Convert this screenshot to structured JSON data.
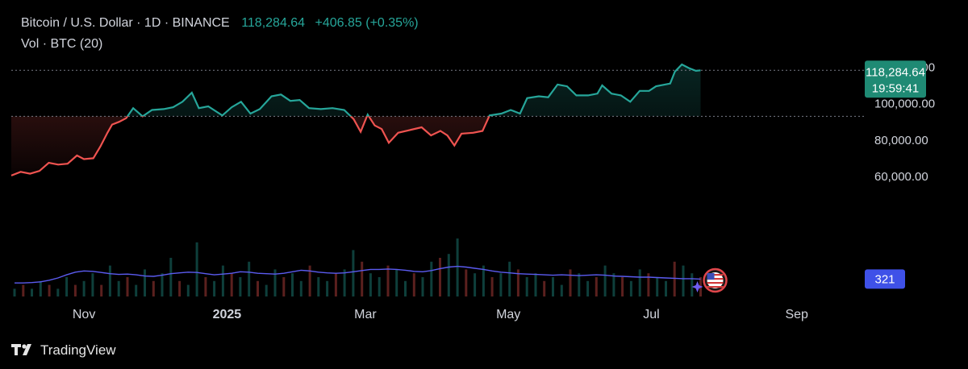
{
  "legend": {
    "title": "Bitcoin / U.S. Dollar · 1D · BINANCE",
    "price": "118,284.64",
    "change": "+406.85 (+0.35%)",
    "volume_label": "Vol · BTC (20)"
  },
  "brand": {
    "name": "TradingView",
    "logo_icon": "tradingview-logo-icon"
  },
  "colors": {
    "up": "#26a69a",
    "down": "#ef5350",
    "volume_ma": "#5b5bf0",
    "badge_volume": "#3f51e8",
    "badge_price": "#1f8a74"
  },
  "chart_data": {
    "type": "line",
    "title": "Bitcoin / U.S. Dollar · 1D · BINANCE",
    "x_ticks": [
      {
        "label": "Nov",
        "date": "2024-11-01"
      },
      {
        "label": "2025",
        "date": "2025-01-01"
      },
      {
        "label": "Mar",
        "date": "2025-03-01"
      },
      {
        "label": "May",
        "date": "2025-05-01"
      },
      {
        "label": "Jul",
        "date": "2025-07-01"
      },
      {
        "label": "Sep",
        "date": "2025-09-01"
      }
    ],
    "y_ticks": [
      {
        "label": "60,000.00",
        "value": 60000
      },
      {
        "label": "80,000.00",
        "value": 80000
      },
      {
        "label": "100,000.00",
        "value": 100000
      },
      {
        "label": "120,000.00",
        "value": 120000
      }
    ],
    "ylim": [
      52000,
      123000
    ],
    "xlim": [
      "2024-10-01",
      "2025-09-30"
    ],
    "baseline": 93000,
    "last_price": 118284.64,
    "last_price_label": "118,284.64",
    "countdown_label": "19:59:41",
    "volume_label": "321",
    "series": [
      {
        "name": "Bitcoin / U.S. Dollar",
        "points": [
          [
            "2024-10-01",
            60500
          ],
          [
            "2024-10-05",
            62500
          ],
          [
            "2024-10-09",
            61500
          ],
          [
            "2024-10-13",
            63000
          ],
          [
            "2024-10-17",
            67500
          ],
          [
            "2024-10-21",
            66500
          ],
          [
            "2024-10-25",
            67000
          ],
          [
            "2024-10-29",
            71500
          ],
          [
            "2024-11-01",
            69500
          ],
          [
            "2024-11-05",
            70000
          ],
          [
            "2024-11-08",
            76500
          ],
          [
            "2024-11-11",
            84000
          ],
          [
            "2024-11-13",
            88500
          ],
          [
            "2024-11-16",
            90000
          ],
          [
            "2024-11-19",
            92000
          ],
          [
            "2024-11-22",
            97500
          ],
          [
            "2024-11-26",
            93000
          ],
          [
            "2024-11-30",
            96500
          ],
          [
            "2024-12-05",
            97000
          ],
          [
            "2024-12-09",
            98000
          ],
          [
            "2024-12-13",
            101000
          ],
          [
            "2024-12-17",
            106000
          ],
          [
            "2024-12-20",
            97500
          ],
          [
            "2024-12-24",
            98500
          ],
          [
            "2024-12-30",
            93500
          ],
          [
            "2025-01-03",
            98000
          ],
          [
            "2025-01-07",
            101000
          ],
          [
            "2025-01-11",
            94500
          ],
          [
            "2025-01-15",
            97000
          ],
          [
            "2025-01-20",
            104000
          ],
          [
            "2025-01-24",
            105000
          ],
          [
            "2025-01-28",
            101500
          ],
          [
            "2025-02-01",
            102000
          ],
          [
            "2025-02-05",
            97500
          ],
          [
            "2025-02-10",
            97000
          ],
          [
            "2025-02-15",
            97500
          ],
          [
            "2025-02-20",
            96500
          ],
          [
            "2025-02-24",
            91500
          ],
          [
            "2025-02-27",
            84500
          ],
          [
            "2025-03-02",
            94000
          ],
          [
            "2025-03-05",
            88000
          ],
          [
            "2025-03-08",
            86000
          ],
          [
            "2025-03-11",
            78500
          ],
          [
            "2025-03-15",
            84000
          ],
          [
            "2025-03-20",
            85500
          ],
          [
            "2025-03-25",
            87000
          ],
          [
            "2025-03-29",
            82500
          ],
          [
            "2025-04-02",
            85000
          ],
          [
            "2025-04-05",
            82500
          ],
          [
            "2025-04-08",
            77000
          ],
          [
            "2025-04-11",
            83500
          ],
          [
            "2025-04-16",
            84000
          ],
          [
            "2025-04-20",
            85000
          ],
          [
            "2025-04-23",
            93500
          ],
          [
            "2025-04-28",
            94500
          ],
          [
            "2025-05-02",
            96500
          ],
          [
            "2025-05-06",
            94500
          ],
          [
            "2025-05-09",
            103000
          ],
          [
            "2025-05-14",
            104000
          ],
          [
            "2025-05-18",
            103500
          ],
          [
            "2025-05-22",
            110500
          ],
          [
            "2025-05-26",
            109500
          ],
          [
            "2025-05-30",
            104500
          ],
          [
            "2025-06-04",
            104500
          ],
          [
            "2025-06-08",
            105500
          ],
          [
            "2025-06-10",
            110000
          ],
          [
            "2025-06-14",
            105500
          ],
          [
            "2025-06-18",
            104500
          ],
          [
            "2025-06-22",
            101000
          ],
          [
            "2025-06-26",
            107000
          ],
          [
            "2025-06-30",
            107000
          ],
          [
            "2025-07-03",
            109500
          ],
          [
            "2025-07-09",
            111000
          ],
          [
            "2025-07-11",
            117500
          ],
          [
            "2025-07-14",
            121500
          ],
          [
            "2025-07-17",
            119500
          ],
          [
            "2025-07-20",
            118000
          ],
          [
            "2025-07-22",
            118284.64
          ]
        ]
      },
      {
        "name": "Vol · BTC (20)",
        "values": [
          2,
          3,
          2,
          4,
          3,
          2,
          5,
          3,
          4,
          6,
          3,
          8,
          4,
          5,
          3,
          7,
          4,
          6,
          10,
          4,
          3,
          14,
          5,
          4,
          8,
          6,
          5,
          9,
          4,
          3,
          7,
          5,
          6,
          4,
          8,
          5,
          4,
          6,
          7,
          12,
          9,
          6,
          5,
          8,
          7,
          4,
          6,
          5,
          9,
          10,
          11,
          15,
          7,
          6,
          8,
          5,
          6,
          9,
          7,
          5,
          6,
          4,
          5,
          3,
          7,
          6,
          4,
          5,
          8,
          6,
          5,
          4,
          7,
          6,
          5,
          4,
          9,
          8,
          6,
          5
        ],
        "ma": [
          3.5,
          3.5,
          3.6,
          3.8,
          4.2,
          4.8,
          5.6,
          6.3,
          6.6,
          6.5,
          6.2,
          5.9,
          5.7,
          5.8,
          5.6,
          5.3,
          5.2,
          5.5,
          5.9,
          6.1,
          6.3,
          6.2,
          5.9,
          5.6,
          5.8,
          6.0,
          6.4,
          6.3,
          6.0,
          5.9,
          5.8,
          6.0,
          6.4,
          6.8,
          6.6,
          6.3,
          6.1,
          6.0,
          6.1,
          6.4,
          6.7,
          7.0,
          7.0,
          7.1,
          7.0,
          6.8,
          6.5,
          6.4,
          6.7,
          7.2,
          7.6,
          7.8,
          7.6,
          7.3,
          7.0,
          6.6,
          6.3,
          6.1,
          5.9,
          5.8,
          5.7,
          5.6,
          5.5,
          5.6,
          5.5,
          5.4,
          5.5,
          5.6,
          5.5,
          5.3,
          5.2,
          5.1,
          5.0,
          5.0,
          4.9,
          4.8,
          4.7,
          4.6,
          4.6,
          4.5
        ]
      }
    ]
  }
}
